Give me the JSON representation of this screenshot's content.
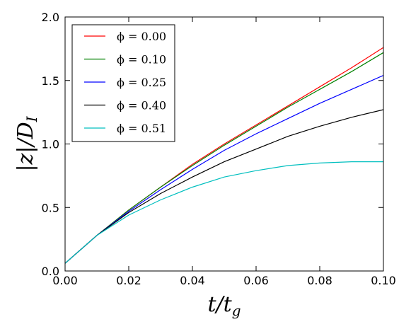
{
  "chart_data": {
    "type": "line",
    "title": "",
    "xlabel": "t/t_g",
    "ylabel": "|z|/D_I",
    "xlabel_display": {
      "main": "t/t",
      "sub": "g"
    },
    "ylabel_display": {
      "main": "|z|/D",
      "sub": "I"
    },
    "xlim": [
      0.0,
      0.1
    ],
    "ylim": [
      0.0,
      2.0
    ],
    "x_ticks": [
      0.0,
      0.02,
      0.04,
      0.06,
      0.08,
      0.1
    ],
    "x_tick_labels": [
      "0.00",
      "0.02",
      "0.04",
      "0.06",
      "0.08",
      "0.10"
    ],
    "y_ticks": [
      0.0,
      0.5,
      1.0,
      1.5,
      2.0
    ],
    "y_tick_labels": [
      "0.0",
      "0.5",
      "1.0",
      "1.5",
      "2.0"
    ],
    "grid": false,
    "legend_position": "top-left",
    "x": [
      0.0,
      0.01,
      0.02,
      0.03,
      0.04,
      0.05,
      0.06,
      0.07,
      0.08,
      0.09,
      0.1
    ],
    "series": [
      {
        "name": "ϕ = 0.00",
        "color": "#ff0000",
        "values": [
          0.06,
          0.28,
          0.48,
          0.66,
          0.84,
          1.0,
          1.15,
          1.3,
          1.45,
          1.6,
          1.76
        ]
      },
      {
        "name": "ϕ = 0.10",
        "color": "#008000",
        "values": [
          0.06,
          0.28,
          0.48,
          0.66,
          0.83,
          0.99,
          1.14,
          1.29,
          1.43,
          1.57,
          1.72
        ]
      },
      {
        "name": "ϕ = 0.25",
        "color": "#0000ff",
        "values": [
          0.06,
          0.28,
          0.47,
          0.64,
          0.8,
          0.95,
          1.08,
          1.2,
          1.32,
          1.43,
          1.54
        ]
      },
      {
        "name": "ϕ = 0.40",
        "color": "#000000",
        "values": [
          0.06,
          0.28,
          0.46,
          0.61,
          0.74,
          0.86,
          0.96,
          1.06,
          1.14,
          1.21,
          1.27
        ]
      },
      {
        "name": "ϕ = 0.51",
        "color": "#00bfbf",
        "values": [
          0.06,
          0.28,
          0.44,
          0.56,
          0.66,
          0.74,
          0.79,
          0.83,
          0.85,
          0.86,
          0.86
        ]
      }
    ]
  }
}
